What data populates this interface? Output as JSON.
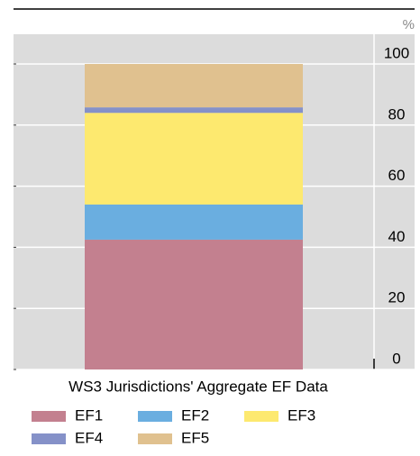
{
  "chart_data": {
    "type": "stacked_bar",
    "y_label": "%",
    "categories": [
      "WS3 Jurisdictions' Aggregate EF Data"
    ],
    "series": [
      {
        "name": "EF1",
        "color": "#c3808f",
        "values": [
          42.5
        ]
      },
      {
        "name": "EF2",
        "color": "#6aaee0",
        "values": [
          11.5
        ]
      },
      {
        "name": "EF3",
        "color": "#fde96f",
        "values": [
          30
        ]
      },
      {
        "name": "EF4",
        "color": "#8591c8",
        "values": [
          1.8
        ]
      },
      {
        "name": "EF5",
        "color": "#e0c18f",
        "values": [
          14.2
        ]
      }
    ],
    "ylim": [
      0,
      100
    ],
    "yticks": [
      0,
      20,
      40,
      60,
      80,
      100
    ],
    "grid": true
  }
}
